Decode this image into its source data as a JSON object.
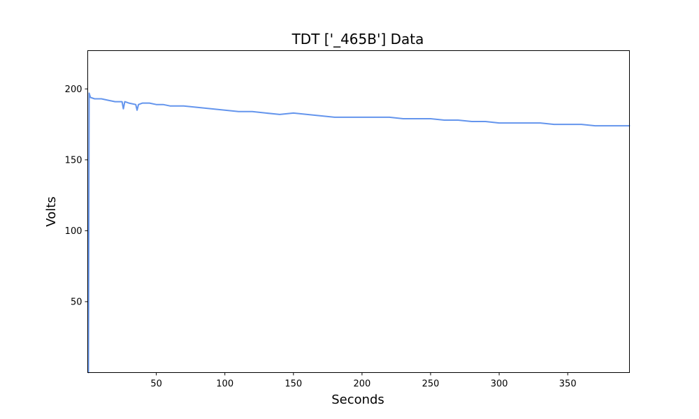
{
  "chart_data": {
    "type": "line",
    "title": "TDT ['_465B'] Data",
    "xlabel": "Seconds",
    "ylabel": "Volts",
    "xlim": [
      0,
      395
    ],
    "ylim": [
      0,
      227
    ],
    "xticks": [
      50,
      100,
      150,
      200,
      250,
      300,
      350
    ],
    "yticks": [
      50,
      100,
      150,
      200
    ],
    "grid": false,
    "series_color": "#6495ed",
    "series": [
      {
        "x": [
          0.5,
          1,
          2,
          5,
          10,
          15,
          20,
          25,
          26,
          27,
          30,
          35,
          36,
          37,
          40,
          45,
          50,
          55,
          60,
          70,
          80,
          90,
          100,
          110,
          120,
          130,
          140,
          150,
          160,
          170,
          180,
          190,
          200,
          210,
          220,
          230,
          240,
          250,
          260,
          270,
          280,
          290,
          300,
          310,
          320,
          330,
          340,
          350,
          360,
          370,
          380,
          390,
          395
        ],
        "y": [
          0,
          197,
          194,
          193,
          193,
          192,
          191,
          191,
          186,
          191,
          190,
          189,
          185,
          189,
          190,
          190,
          189,
          189,
          188,
          188,
          187,
          186,
          185,
          184,
          184,
          183,
          182,
          183,
          182,
          181,
          180,
          180,
          180,
          180,
          180,
          179,
          179,
          179,
          178,
          178,
          177,
          177,
          176,
          176,
          176,
          176,
          175,
          175,
          175,
          174,
          174,
          174,
          174
        ]
      }
    ]
  }
}
